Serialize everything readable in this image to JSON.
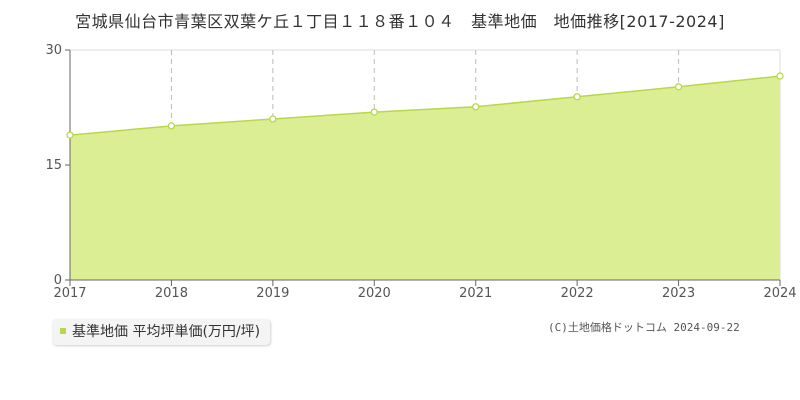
{
  "chart_data": {
    "type": "area",
    "title": "宮城県仙台市青葉区双葉ケ丘１丁目１１８番１０４　基準地価　地価推移[2017-2024]",
    "x": [
      "2017",
      "2018",
      "2019",
      "2020",
      "2021",
      "2022",
      "2023",
      "2024"
    ],
    "series": [
      {
        "name": "基準地価 平均坪単価(万円/坪)",
        "values": [
          18.9,
          20.1,
          21.0,
          21.9,
          22.6,
          23.9,
          25.2,
          26.6
        ]
      }
    ],
    "y_ticks": [
      "0",
      "15",
      "30"
    ],
    "ylim": [
      0,
      30
    ],
    "grid": true,
    "legend_position": "bottom-left",
    "colors": {
      "fill": "#dcee94",
      "line": "#b7d84a",
      "marker_fill": "#ffffff"
    }
  },
  "credit": "(C)土地価格ドットコム 2024-09-22"
}
